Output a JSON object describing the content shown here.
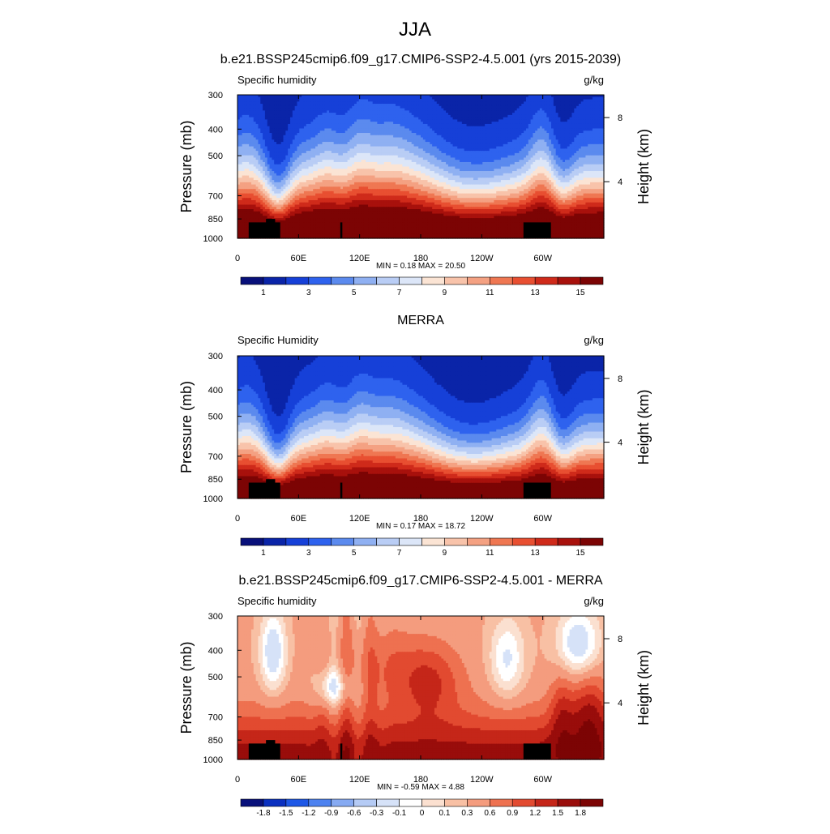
{
  "figure": {
    "title": "JJA"
  },
  "colors": {
    "seq_palette": [
      "#08107a",
      "#0a24a8",
      "#1640d8",
      "#2e62ee",
      "#5b8aee",
      "#8fb0f2",
      "#b9cdf5",
      "#dce6f8",
      "#fbe4d4",
      "#f8c3aa",
      "#f4a182",
      "#ef7752",
      "#e84f31",
      "#cf2a1a",
      "#a8110c",
      "#7c0404"
    ],
    "div_palette": [
      "#08107a",
      "#0a30c0",
      "#1d57e6",
      "#4d82f0",
      "#86aaf2",
      "#b5cbf5",
      "#d6e2f8",
      "#ffffff",
      "#fbe0d0",
      "#f8c0a4",
      "#f49c7e",
      "#ee7150",
      "#e24a30",
      "#c52619",
      "#990d0b",
      "#7c0404"
    ],
    "land_mask": "#000000"
  },
  "chart_data": [
    {
      "type": "heatmap",
      "title": "b.e21.BSSP245cmip6.f09_g17.CMIP6-SSP2-4.5.001 (yrs 2015-2039)",
      "left_label": "Specific humidity",
      "right_label": "g/kg",
      "ylabel": "Pressure (mb)",
      "y2label": "Height (km)",
      "x_ticks": [
        "0",
        "60E",
        "120E",
        "180",
        "120W",
        "60W"
      ],
      "x_tick_lon": [
        0,
        60,
        120,
        180,
        240,
        300
      ],
      "xlim": [
        0,
        360
      ],
      "y_ticks": [
        "300",
        "400",
        "500",
        "700",
        "850",
        "1000"
      ],
      "y_tick_p": [
        300,
        400,
        500,
        700,
        850,
        1000
      ],
      "ylim": [
        1000,
        300
      ],
      "y_scale": "log",
      "y2_ticks": [
        "8",
        "4"
      ],
      "y2_tick_p": [
        363,
        622
      ],
      "stats_text": "MIN =   0.18  MAX =  20.50",
      "min": 0.18,
      "max": 20.5,
      "colorbar_labels": [
        "1",
        "3",
        "5",
        "7",
        "9",
        "11",
        "13",
        "15"
      ],
      "colorbar_label_index": [
        1,
        3,
        5,
        7,
        9,
        11,
        13,
        15
      ],
      "colorbar_boxes": 16,
      "palette": "seq",
      "field": "model"
    },
    {
      "type": "heatmap",
      "title": "MERRA",
      "left_label": "Specific Humidity",
      "right_label": "g/kg",
      "ylabel": "Pressure (mb)",
      "y2label": "Height (km)",
      "x_ticks": [
        "0",
        "60E",
        "120E",
        "180",
        "120W",
        "60W"
      ],
      "x_tick_lon": [
        0,
        60,
        120,
        180,
        240,
        300
      ],
      "xlim": [
        0,
        360
      ],
      "y_ticks": [
        "300",
        "400",
        "500",
        "700",
        "850",
        "1000"
      ],
      "y_tick_p": [
        300,
        400,
        500,
        700,
        850,
        1000
      ],
      "ylim": [
        1000,
        300
      ],
      "y_scale": "log",
      "y2_ticks": [
        "8",
        "4"
      ],
      "y2_tick_p": [
        363,
        622
      ],
      "stats_text": "MIN =   0.17  MAX =  18.72",
      "min": 0.17,
      "max": 18.72,
      "colorbar_labels": [
        "1",
        "3",
        "5",
        "7",
        "9",
        "11",
        "13",
        "15"
      ],
      "colorbar_label_index": [
        1,
        3,
        5,
        7,
        9,
        11,
        13,
        15
      ],
      "colorbar_boxes": 16,
      "palette": "seq",
      "field": "obs"
    },
    {
      "type": "heatmap",
      "title": "b.e21.BSSP245cmip6.f09_g17.CMIP6-SSP2-4.5.001 - MERRA",
      "left_label": "Specific humidity",
      "right_label": "g/kg",
      "ylabel": "Pressure (mb)",
      "y2label": "Height (km)",
      "x_ticks": [
        "0",
        "60E",
        "120E",
        "180",
        "120W",
        "60W"
      ],
      "x_tick_lon": [
        0,
        60,
        120,
        180,
        240,
        300
      ],
      "xlim": [
        0,
        360
      ],
      "y_ticks": [
        "300",
        "400",
        "500",
        "700",
        "850",
        "1000"
      ],
      "y_tick_p": [
        300,
        400,
        500,
        700,
        850,
        1000
      ],
      "ylim": [
        1000,
        300
      ],
      "y_scale": "log",
      "y2_ticks": [
        "8",
        "4"
      ],
      "y2_tick_p": [
        363,
        622
      ],
      "stats_text": "MIN =  -0.59  MAX =   4.88",
      "min": -0.59,
      "max": 4.88,
      "colorbar_labels": [
        "-1.8",
        "-1.5",
        "-1.2",
        "-0.9",
        "-0.6",
        "-0.3",
        "-0.1",
        "0",
        "0.1",
        "0.3",
        "0.6",
        "0.9",
        "1.2",
        "1.5",
        "1.8"
      ],
      "colorbar_label_index": [
        1,
        2,
        3,
        4,
        5,
        6,
        7,
        8,
        9,
        10,
        11,
        12,
        13,
        14,
        15
      ],
      "colorbar_boxes": 16,
      "palette": "div",
      "field": "diff"
    }
  ]
}
